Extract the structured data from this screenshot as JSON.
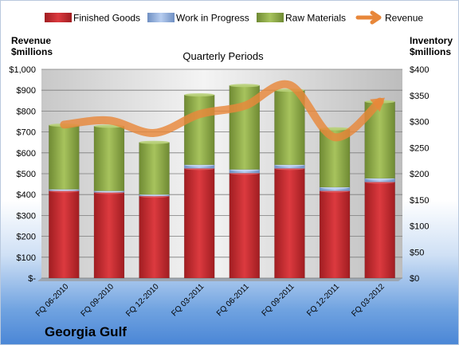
{
  "chart_data": {
    "type": "bar",
    "title": "Quarterly Periods",
    "company": "Georgia Gulf",
    "left_axis_label": [
      "Revenue",
      "$millions"
    ],
    "right_axis_label": [
      "Inventory",
      "$millions"
    ],
    "categories": [
      "FQ 06-2010",
      "FQ 09-2010",
      "FQ 12-2010",
      "FQ 03-2011",
      "FQ 06-2011",
      "FQ 09-2011",
      "FQ 12-2011",
      "FQ 03-2012"
    ],
    "left_ylim": [
      0,
      1000
    ],
    "right_ylim": [
      0,
      400
    ],
    "left_ticks": [
      "$-",
      "$100",
      "$200",
      "$300",
      "$400",
      "$500",
      "$600",
      "$700",
      "$800",
      "$900",
      "$1,000"
    ],
    "right_ticks": [
      "$0",
      "$50",
      "$100",
      "$150",
      "$200",
      "$250",
      "$300",
      "$350",
      "$400"
    ],
    "legend_position": "top",
    "grid": true,
    "stacked_series_axis": "right",
    "series": [
      {
        "name": "Finished Goods",
        "kind": "bar",
        "color": "#c0262b",
        "values": [
          167,
          164,
          157,
          210,
          201,
          210,
          167,
          184
        ]
      },
      {
        "name": "Work in Progress",
        "kind": "bar",
        "color": "#8aa9d9",
        "values": [
          3,
          3,
          3,
          7,
          7,
          7,
          7,
          7
        ]
      },
      {
        "name": "Raw Materials",
        "kind": "bar",
        "color": "#8fac4a",
        "values": [
          123,
          124,
          100,
          134,
          161,
          143,
          112,
          147
        ]
      },
      {
        "name": "Revenue",
        "kind": "line",
        "axis": "left",
        "color": "#e8873a",
        "values": [
          735,
          755,
          695,
          785,
          825,
          925,
          675,
          845
        ]
      }
    ]
  }
}
